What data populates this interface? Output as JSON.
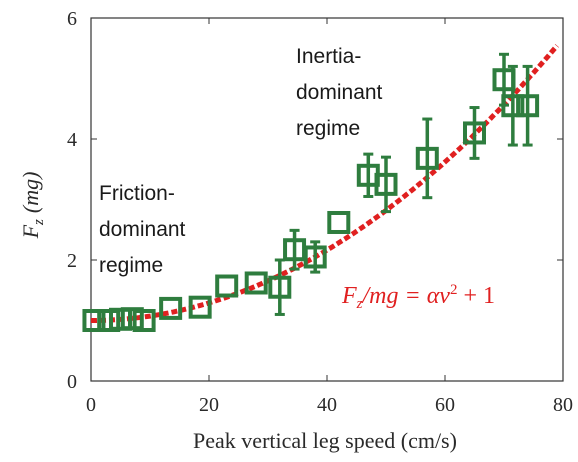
{
  "chart_data": {
    "type": "scatter",
    "title": "",
    "xlabel": "Peak vertical leg speed (cm/s)",
    "ylabel_main": "F",
    "ylabel_sub": "z",
    "ylabel_unit": "(mg)",
    "xlim": [
      0,
      80
    ],
    "ylim": [
      0,
      6
    ],
    "xticks": [
      0,
      20,
      40,
      60,
      80
    ],
    "yticks": [
      0,
      2,
      4,
      6
    ],
    "grid": false,
    "colors": {
      "points": "#2e7d3e",
      "fit": "#e02020",
      "axis": "#333333"
    },
    "points": [
      {
        "x": 0.5,
        "y": 1.0,
        "err": 0.05
      },
      {
        "x": 3,
        "y": 1.0,
        "err": 0.05
      },
      {
        "x": 5,
        "y": 1.02,
        "err": 0.05
      },
      {
        "x": 7,
        "y": 1.03,
        "err": 0.07
      },
      {
        "x": 9,
        "y": 1.0,
        "err": 0.07
      },
      {
        "x": 13.5,
        "y": 1.2,
        "err": 0.1
      },
      {
        "x": 18.5,
        "y": 1.22,
        "err": 0.1
      },
      {
        "x": 23,
        "y": 1.57,
        "err": 0.12
      },
      {
        "x": 28,
        "y": 1.62,
        "err": 0.1
      },
      {
        "x": 32,
        "y": 1.55,
        "err": 0.45
      },
      {
        "x": 34.5,
        "y": 2.17,
        "err": 0.32
      },
      {
        "x": 38,
        "y": 2.05,
        "err": 0.25
      },
      {
        "x": 42,
        "y": 2.62,
        "err": 0.15
      },
      {
        "x": 47,
        "y": 3.4,
        "err": 0.35
      },
      {
        "x": 50,
        "y": 3.25,
        "err": 0.45
      },
      {
        "x": 57,
        "y": 3.68,
        "err": 0.65
      },
      {
        "x": 65,
        "y": 4.1,
        "err": 0.42
      },
      {
        "x": 70,
        "y": 4.98,
        "err": 0.42
      },
      {
        "x": 71.5,
        "y": 4.55,
        "err": 0.65
      },
      {
        "x": 74,
        "y": 4.55,
        "err": 0.65
      }
    ],
    "fit": {
      "label_lhs": "F",
      "label_sub": "z",
      "label_rest": "/mg = αv",
      "label_sup": "2",
      "label_tail": " + 1",
      "alpha": 0.000728,
      "x_range": [
        0,
        79
      ]
    },
    "annotations": {
      "friction_lines": [
        "Friction-",
        "dominant",
        "regime"
      ],
      "inertia_lines": [
        "Inertia-",
        "dominant",
        "regime"
      ]
    }
  }
}
